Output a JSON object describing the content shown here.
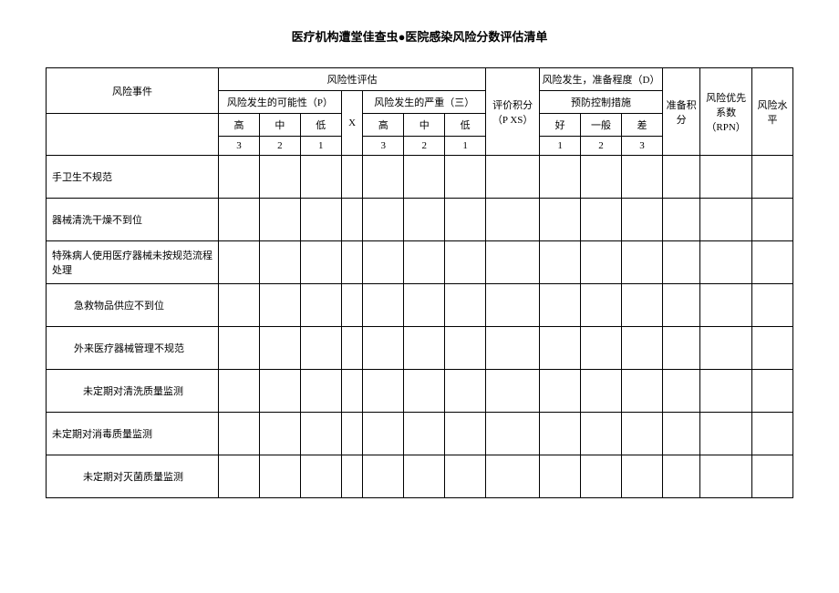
{
  "title": "医疗机构遭堂佳查虫●医院感染风险分数评估清单",
  "headers": {
    "risk_event": "风险事件",
    "risk_assessment": "风险性评估",
    "eval_score": "评价积分（P XS）",
    "risk_occur_prep": "风险发生，准备程度（D）",
    "possibility": "风险发生的可能性（P）",
    "x": "X",
    "severity": "风险发生的严重（三）",
    "prevention": "预防控制措施",
    "prep_score": "准备积分",
    "rpn": "风险优先系数（RPN）",
    "risk_level": "风险水平",
    "high": "高",
    "mid": "中",
    "low": "低",
    "good": "好",
    "normal": "一般",
    "bad": "差",
    "n3": "3",
    "n2": "2",
    "n1": "1"
  },
  "rows": [
    {
      "label": "手卫生不规范",
      "indent": 0
    },
    {
      "label": "器械清洗干燥不到位",
      "indent": 0
    },
    {
      "label": "特殊病人使用医疗器械未按规范流程处理",
      "indent": 0
    },
    {
      "label": "急救物品供应不到位",
      "indent": 1
    },
    {
      "label": "外来医疗器械管理不规范",
      "indent": 1
    },
    {
      "label": "未定期对清洗质量监测",
      "indent": 2
    },
    {
      "label": "未定期对消毒质量监测",
      "indent": 0
    },
    {
      "label": "未定期对灭菌质量监测",
      "indent": 2
    }
  ],
  "colors": {
    "border": "#000000",
    "background": "#ffffff",
    "text": "#000000"
  },
  "fonts": {
    "title_size": 13,
    "cell_size": 11
  }
}
